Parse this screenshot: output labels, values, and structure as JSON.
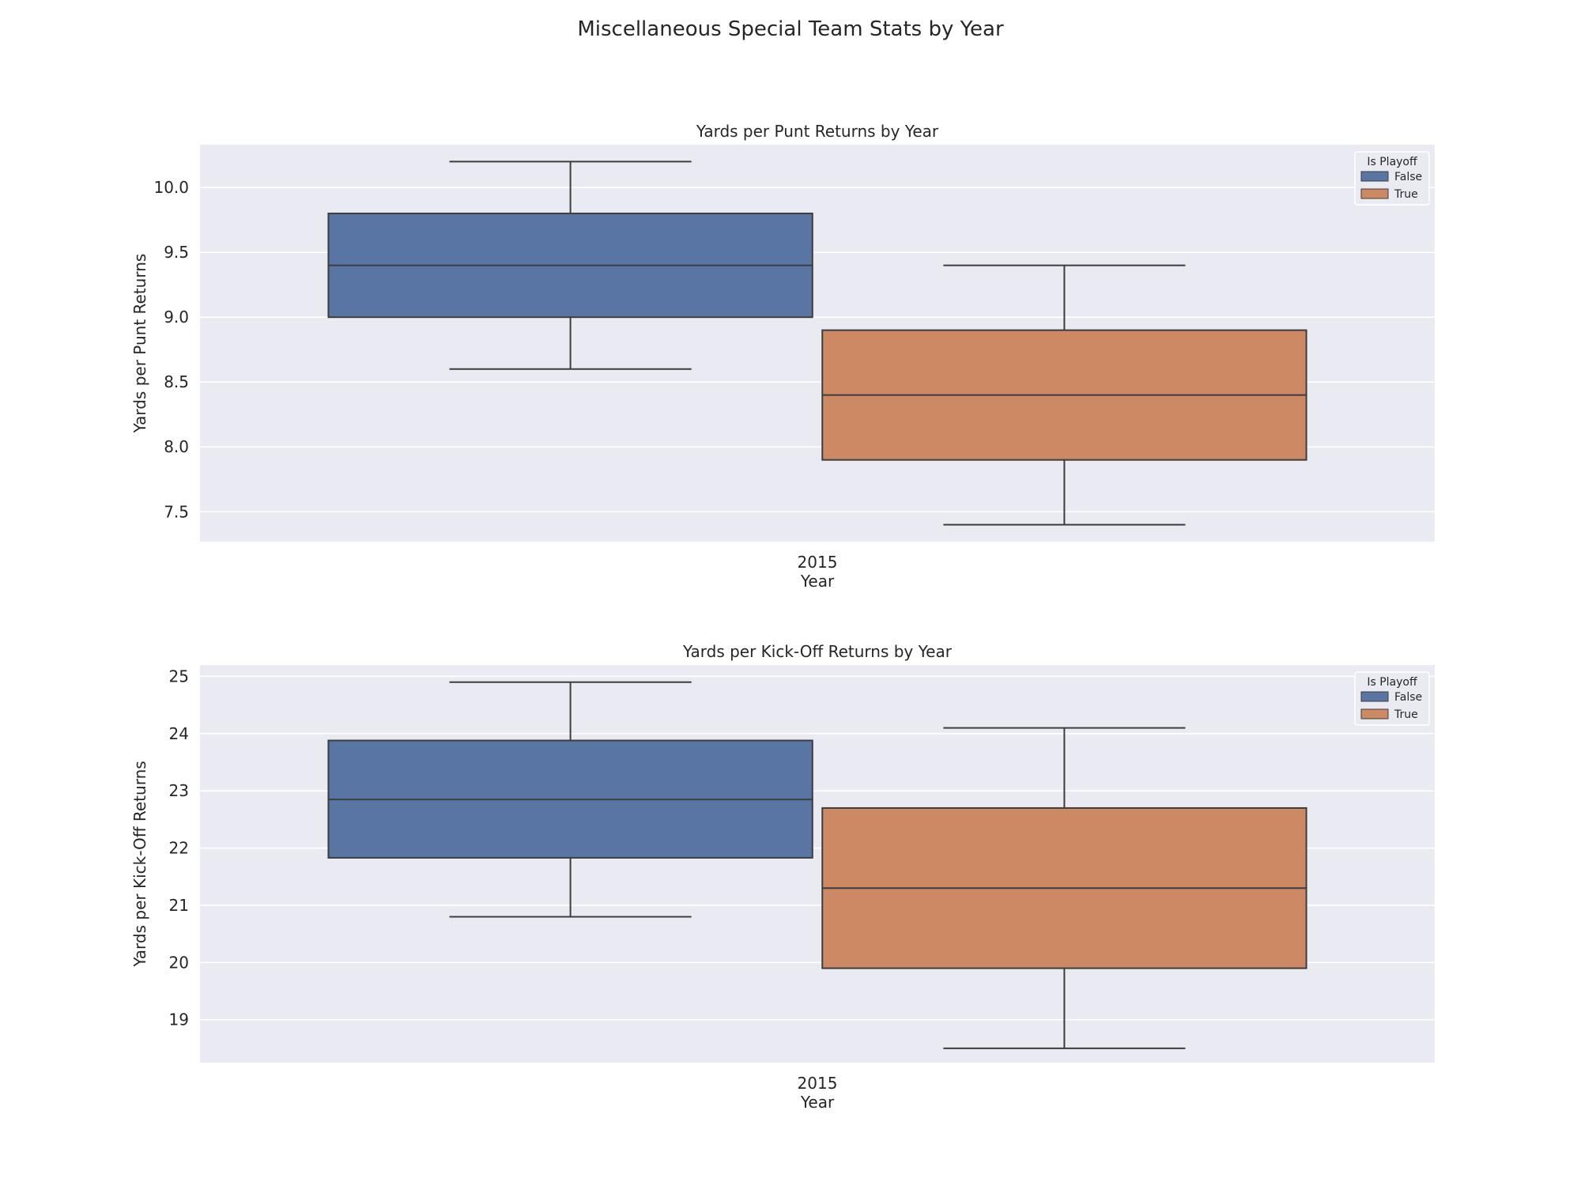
{
  "figure": {
    "suptitle": "Miscellaneous Special Team Stats by Year"
  },
  "colors": {
    "background": "#ffffff",
    "plot_area": "#eaeaf2",
    "grid": "#ffffff",
    "box_outline": "#3d3d3d",
    "text": "#262626"
  },
  "chart_data": [
    {
      "type": "box",
      "title": "Yards per Punt Returns by Year",
      "xlabel": "Year",
      "ylabel": "Yards per Punt Returns",
      "categories": [
        "2015"
      ],
      "ylim": [
        7.27,
        10.33
      ],
      "yticks": [
        7.5,
        8.0,
        8.5,
        9.0,
        9.5,
        10.0
      ],
      "ytick_labels": [
        "7.5",
        "8.0",
        "8.5",
        "9.0",
        "9.5",
        "10.0"
      ],
      "grid": true,
      "legend": {
        "title": "Is Playoff",
        "position": "top-right"
      },
      "series": [
        {
          "name": "False",
          "color": "#5975a4",
          "boxes": [
            {
              "category": "2015",
              "whisker_low": 8.6,
              "q1": 9.0,
              "median": 9.4,
              "q3": 9.8,
              "whisker_high": 10.2
            }
          ]
        },
        {
          "name": "True",
          "color": "#cc8963",
          "boxes": [
            {
              "category": "2015",
              "whisker_low": 7.4,
              "q1": 7.9,
              "median": 8.4,
              "q3": 8.9,
              "whisker_high": 9.4
            }
          ]
        }
      ]
    },
    {
      "type": "box",
      "title": "Yards per Kick-Off Returns by Year",
      "xlabel": "Year",
      "ylabel": "Yards per Kick-Off Returns",
      "categories": [
        "2015"
      ],
      "ylim": [
        18.25,
        25.2
      ],
      "yticks": [
        19,
        20,
        21,
        22,
        23,
        24,
        25
      ],
      "ytick_labels": [
        "19",
        "20",
        "21",
        "22",
        "23",
        "24",
        "25"
      ],
      "grid": true,
      "legend": {
        "title": "Is Playoff",
        "position": "top-right"
      },
      "series": [
        {
          "name": "False",
          "color": "#5975a4",
          "boxes": [
            {
              "category": "2015",
              "whisker_low": 20.8,
              "q1": 21.83,
              "median": 22.85,
              "q3": 23.88,
              "whisker_high": 24.9
            }
          ]
        },
        {
          "name": "True",
          "color": "#cc8963",
          "boxes": [
            {
              "category": "2015",
              "whisker_low": 18.5,
              "q1": 19.9,
              "median": 21.3,
              "q3": 22.7,
              "whisker_high": 24.1
            }
          ]
        }
      ]
    }
  ]
}
